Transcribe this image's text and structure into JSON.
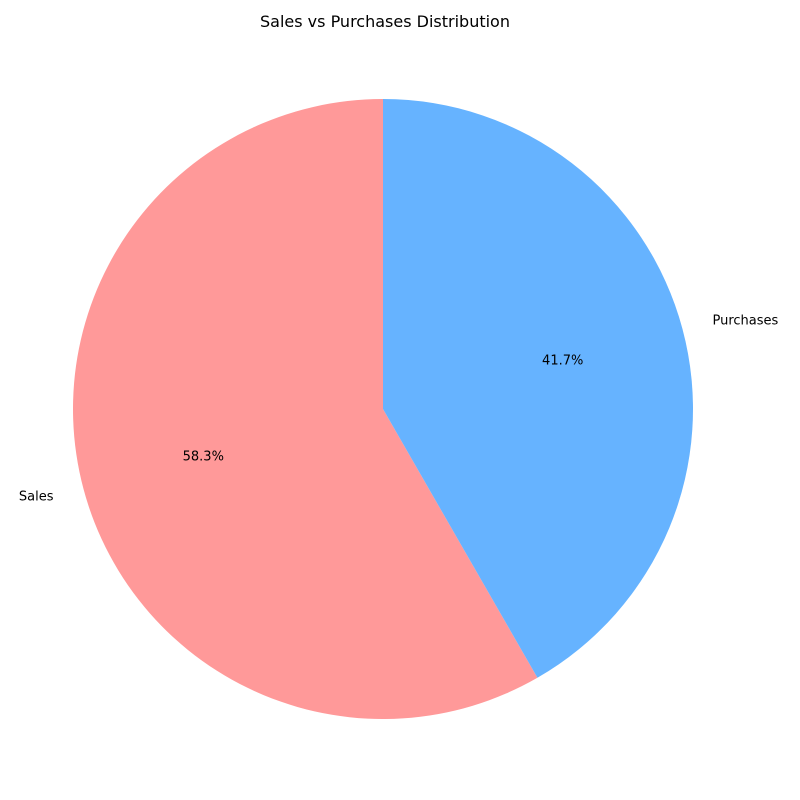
{
  "chart_data": {
    "type": "pie",
    "title": "Sales vs Purchases Distribution",
    "slices": [
      {
        "label": "Sales",
        "value": 58.3,
        "pct_label": "58.3%",
        "color": "#ff9999"
      },
      {
        "label": "Purchases",
        "value": 41.7,
        "pct_label": "41.7%",
        "color": "#66b3ff"
      }
    ],
    "start_angle_deg": 90,
    "direction": "counterclockwise",
    "legend": "none"
  }
}
